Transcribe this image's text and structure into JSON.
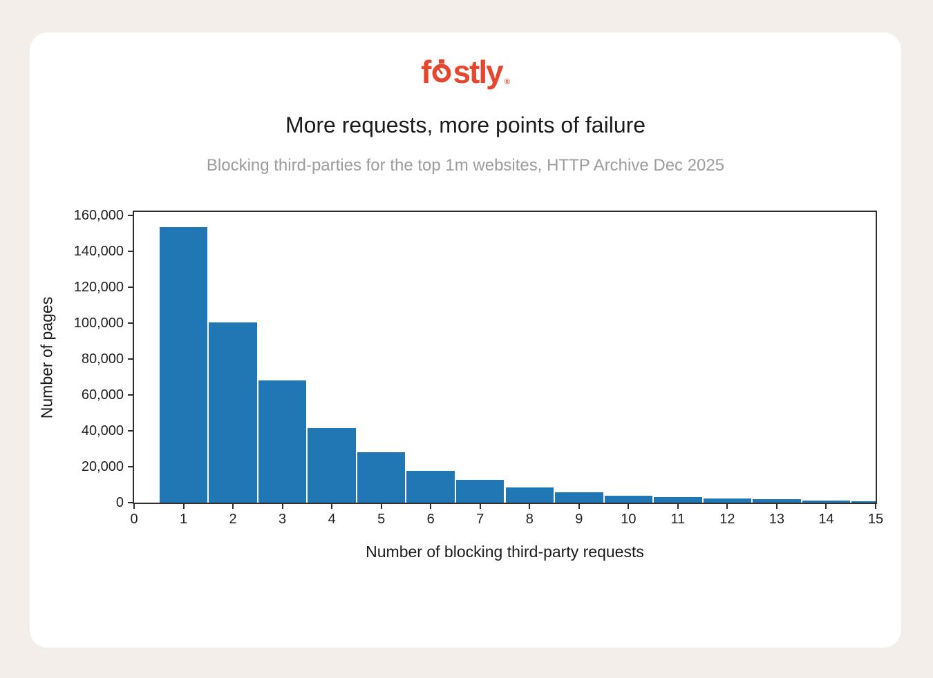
{
  "page": {
    "background_color": "#f3eeea",
    "card_color": "#ffffff"
  },
  "logo": {
    "brand_prefix": "f",
    "brand_suffix": "stly",
    "registered_mark": "®",
    "color": "#e5472e",
    "icon": "stopwatch-icon"
  },
  "chart_data": {
    "type": "bar",
    "title": "More requests, more points of failure",
    "subtitle": "Blocking third-parties for the top 1m websites, HTTP Archive Dec 2025",
    "xlabel": "Number of blocking third-party requests",
    "ylabel": "Number of pages",
    "categories": [
      1,
      2,
      3,
      4,
      5,
      6,
      7,
      8,
      9,
      10,
      11,
      12,
      13,
      14,
      15
    ],
    "values": [
      153500,
      100500,
      68000,
      41500,
      28000,
      17800,
      12700,
      8400,
      5700,
      4000,
      2900,
      2300,
      1800,
      1300,
      800
    ],
    "bar_width": 1,
    "xlim": [
      0,
      15
    ],
    "ylim": [
      0,
      162000
    ],
    "xticks": [
      0,
      1,
      2,
      3,
      4,
      5,
      6,
      7,
      8,
      9,
      10,
      11,
      12,
      13,
      14,
      15
    ],
    "yticks": [
      0,
      20000,
      40000,
      60000,
      80000,
      100000,
      120000,
      140000,
      160000
    ],
    "ytick_labels": [
      "0",
      "20,000",
      "40,000",
      "60,000",
      "80,000",
      "100,000",
      "120,000",
      "140,000",
      "160,000"
    ],
    "bar_color": "#2077b4",
    "bar_edge_color": "#ffffff",
    "spine_color": "#2e2e2e",
    "grid": false,
    "legend": null
  }
}
